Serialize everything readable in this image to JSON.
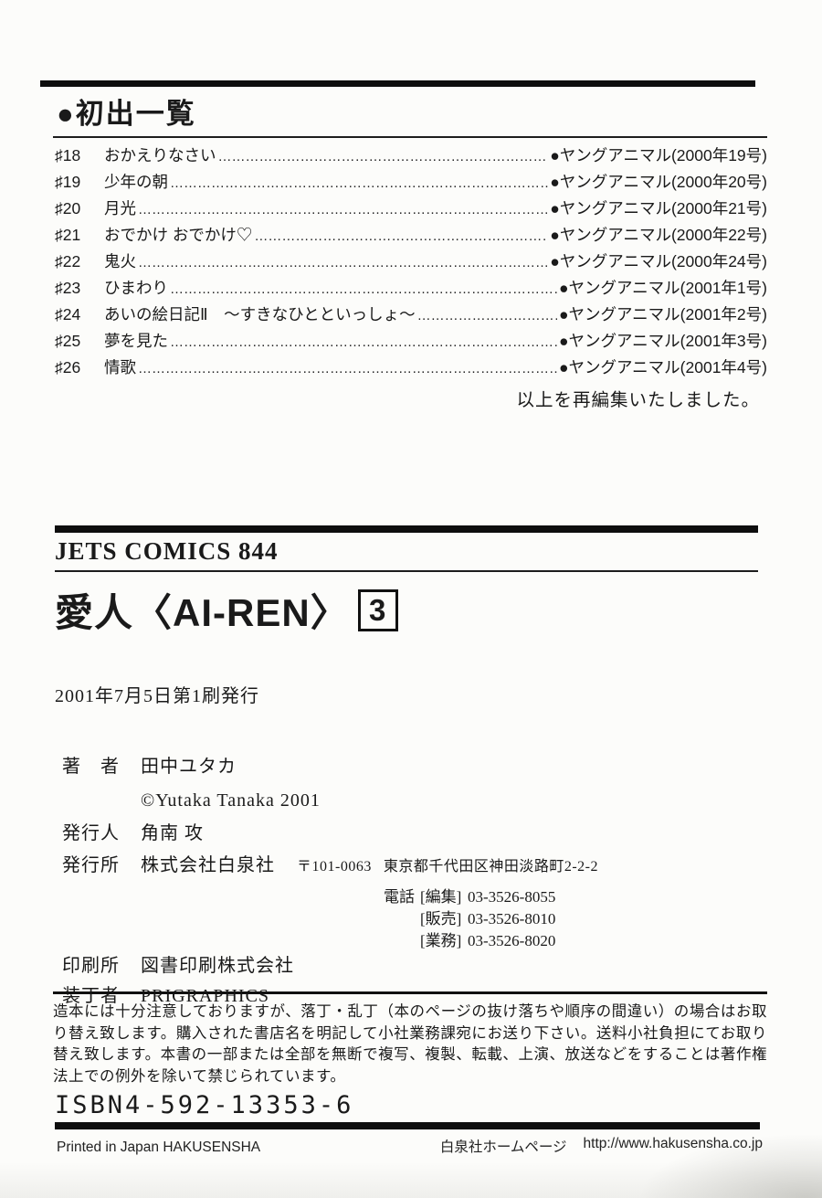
{
  "list": {
    "header": "●初出一覧",
    "items": [
      {
        "num": "♯18",
        "title": "おかえりなさい",
        "source": "●ヤングアニマル(2000年19号)"
      },
      {
        "num": "♯19",
        "title": "少年の朝",
        "source": "●ヤングアニマル(2000年20号)"
      },
      {
        "num": "♯20",
        "title": "月光",
        "source": "●ヤングアニマル(2000年21号)"
      },
      {
        "num": "♯21",
        "title": "おでかけ おでかけ♡",
        "source": "●ヤングアニマル(2000年22号)"
      },
      {
        "num": "♯22",
        "title": "鬼火",
        "source": "●ヤングアニマル(2000年24号)"
      },
      {
        "num": "♯23",
        "title": "ひまわり",
        "source": "●ヤングアニマル(2001年1号)"
      },
      {
        "num": "♯24",
        "title": "あいの絵日記Ⅱ　〜すきなひとといっしょ〜",
        "source": "●ヤングアニマル(2001年2号)"
      },
      {
        "num": "♯25",
        "title": "夢を見た",
        "source": "●ヤングアニマル(2001年3号)"
      },
      {
        "num": "♯26",
        "title": "情歌",
        "source": "●ヤングアニマル(2001年4号)"
      }
    ],
    "footer_note": "以上を再編集いたしました。"
  },
  "book": {
    "series": "JETS COMICS 844",
    "title": "愛人〈AI-REN〉",
    "volume": "3",
    "print_date": "2001年7月5日第1刷発行"
  },
  "colophon": {
    "author_label": "著　者",
    "author": "田中ユタカ",
    "copyright": "©Yutaka Tanaka 2001",
    "person_label": "発行人",
    "person": "角南 攻",
    "publisher_label": "発行所",
    "publisher": "株式会社白泉社",
    "postal": "〒101-0063",
    "address": "東京都千代田区神田淡路町2-2-2",
    "tel_label": "電話",
    "phones": [
      {
        "dept": "[編集]",
        "number": "03-3526-8055"
      },
      {
        "dept": "[販売]",
        "number": "03-3526-8010"
      },
      {
        "dept": "[業務]",
        "number": "03-3526-8020"
      }
    ],
    "printer_label": "印刷所",
    "printer": "図書印刷株式会社",
    "designer_label": "装丁者",
    "designer": "PRIGRAPHICS"
  },
  "legal": {
    "text": "造本には十分注意しておりますが、落丁・乱丁（本のページの抜け落ちや順序の間違い）の場合はお取り替え致します。購入された書店名を明記して小社業務課宛にお送り下さい。送料小社負担にてお取り替え致します。本書の一部または全部を無断で複写、複製、転載、上演、放送などをすることは著作権法上での例外を除いて禁じられています。"
  },
  "isbn": "ISBN4-592-13353-6",
  "footer": {
    "left": "Printed in Japan HAKUSENSHA",
    "right_label": "白泉社ホームページ",
    "right_url": "http://www.hakusensha.co.jp"
  },
  "colors": {
    "bar": "#0e0e0e",
    "text": "#1a1a1a",
    "paper": "#fcfcfa"
  }
}
